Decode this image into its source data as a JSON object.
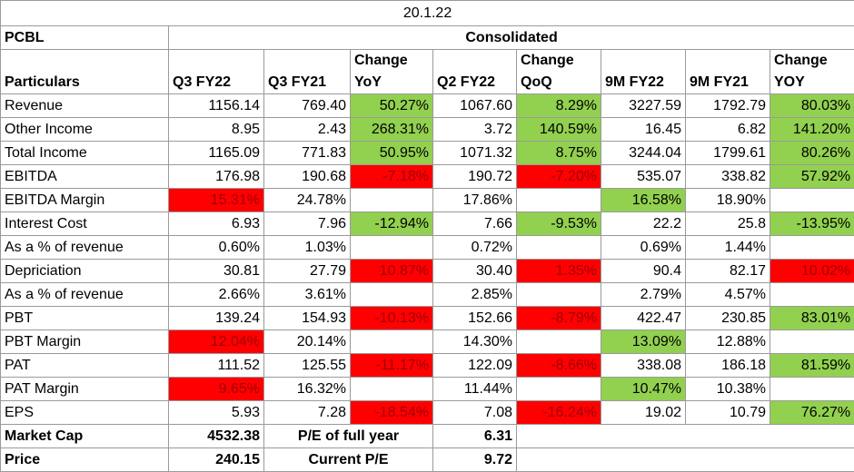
{
  "title": "20.1.22",
  "company": "PCBL",
  "group_label": "Consolidated",
  "headers": [
    "Particulars",
    "Q3 FY22",
    "Q3 FY21",
    "Change YoY",
    "Q2 FY22",
    "Change QoQ",
    "9M FY22",
    "9M FY21",
    "Change YOY"
  ],
  "colors": {
    "green": "#92D050",
    "red": "#FF0000"
  },
  "rows": [
    {
      "label": "Revenue",
      "cells": [
        {
          "v": "1156.14"
        },
        {
          "v": "769.40"
        },
        {
          "v": "50.27%",
          "f": "g"
        },
        {
          "v": "1067.60"
        },
        {
          "v": "8.29%",
          "f": "g"
        },
        {
          "v": "3227.59"
        },
        {
          "v": "1792.79"
        },
        {
          "v": "80.03%",
          "f": "g"
        }
      ]
    },
    {
      "label": "Other Income",
      "cells": [
        {
          "v": "8.95"
        },
        {
          "v": "2.43"
        },
        {
          "v": "268.31%",
          "f": "g"
        },
        {
          "v": "3.72"
        },
        {
          "v": "140.59%",
          "f": "g"
        },
        {
          "v": "16.45"
        },
        {
          "v": "6.82"
        },
        {
          "v": "141.20%",
          "f": "g"
        }
      ]
    },
    {
      "label": "Total Income",
      "cells": [
        {
          "v": "1165.09"
        },
        {
          "v": "771.83"
        },
        {
          "v": "50.95%",
          "f": "g"
        },
        {
          "v": "1071.32"
        },
        {
          "v": "8.75%",
          "f": "g"
        },
        {
          "v": "3244.04"
        },
        {
          "v": "1799.61"
        },
        {
          "v": "80.26%",
          "f": "g"
        }
      ]
    },
    {
      "label": "EBITDA",
      "cells": [
        {
          "v": "176.98"
        },
        {
          "v": "190.68"
        },
        {
          "v": "-7.18%",
          "f": "r"
        },
        {
          "v": "190.72"
        },
        {
          "v": "-7.20%",
          "f": "r"
        },
        {
          "v": "535.07"
        },
        {
          "v": "338.82"
        },
        {
          "v": "57.92%",
          "f": "g"
        }
      ]
    },
    {
      "label": "EBITDA Margin",
      "cells": [
        {
          "v": "15.31%",
          "f": "r"
        },
        {
          "v": "24.78%"
        },
        {
          "v": ""
        },
        {
          "v": "17.86%"
        },
        {
          "v": ""
        },
        {
          "v": "16.58%",
          "f": "g"
        },
        {
          "v": "18.90%"
        },
        {
          "v": ""
        }
      ]
    },
    {
      "label": "Interest Cost",
      "cells": [
        {
          "v": "6.93"
        },
        {
          "v": "7.96"
        },
        {
          "v": "-12.94%",
          "f": "g"
        },
        {
          "v": "7.66"
        },
        {
          "v": "-9.53%",
          "f": "g"
        },
        {
          "v": "22.2"
        },
        {
          "v": "25.8"
        },
        {
          "v": "-13.95%",
          "f": "g"
        }
      ]
    },
    {
      "label": "As a % of revenue",
      "cells": [
        {
          "v": "0.60%"
        },
        {
          "v": "1.03%"
        },
        {
          "v": ""
        },
        {
          "v": "0.72%"
        },
        {
          "v": ""
        },
        {
          "v": "0.69%"
        },
        {
          "v": "1.44%"
        },
        {
          "v": ""
        }
      ]
    },
    {
      "label": "Depriciation",
      "cells": [
        {
          "v": "30.81"
        },
        {
          "v": "27.79"
        },
        {
          "v": "10.87%",
          "f": "r"
        },
        {
          "v": "30.40"
        },
        {
          "v": "1.35%",
          "f": "r"
        },
        {
          "v": "90.4"
        },
        {
          "v": "82.17"
        },
        {
          "v": "10.02%",
          "f": "r"
        }
      ]
    },
    {
      "label": "As a % of revenue",
      "cells": [
        {
          "v": "2.66%"
        },
        {
          "v": "3.61%"
        },
        {
          "v": ""
        },
        {
          "v": "2.85%"
        },
        {
          "v": ""
        },
        {
          "v": "2.79%"
        },
        {
          "v": "4.57%"
        },
        {
          "v": ""
        }
      ]
    },
    {
      "label": "PBT",
      "cells": [
        {
          "v": "139.24"
        },
        {
          "v": "154.93"
        },
        {
          "v": "-10.13%",
          "f": "r"
        },
        {
          "v": "152.66"
        },
        {
          "v": "-8.79%",
          "f": "r"
        },
        {
          "v": "422.47"
        },
        {
          "v": "230.85"
        },
        {
          "v": "83.01%",
          "f": "g"
        }
      ]
    },
    {
      "label": "PBT Margin",
      "cells": [
        {
          "v": "12.04%",
          "f": "r"
        },
        {
          "v": "20.14%"
        },
        {
          "v": ""
        },
        {
          "v": "14.30%"
        },
        {
          "v": ""
        },
        {
          "v": "13.09%",
          "f": "g"
        },
        {
          "v": "12.88%"
        },
        {
          "v": ""
        }
      ]
    },
    {
      "label": "PAT",
      "cells": [
        {
          "v": "111.52"
        },
        {
          "v": "125.55"
        },
        {
          "v": "-11.17%",
          "f": "r"
        },
        {
          "v": "122.09"
        },
        {
          "v": "-8.66%",
          "f": "r"
        },
        {
          "v": "338.08"
        },
        {
          "v": "186.18"
        },
        {
          "v": "81.59%",
          "f": "g"
        }
      ]
    },
    {
      "label": "PAT Margin",
      "cells": [
        {
          "v": "9.65%",
          "f": "r"
        },
        {
          "v": "16.32%"
        },
        {
          "v": ""
        },
        {
          "v": "11.44%"
        },
        {
          "v": ""
        },
        {
          "v": "10.47%",
          "f": "g"
        },
        {
          "v": "10.38%"
        },
        {
          "v": ""
        }
      ]
    },
    {
      "label": "EPS",
      "cells": [
        {
          "v": "5.93"
        },
        {
          "v": "7.28"
        },
        {
          "v": "-18.54%",
          "f": "r"
        },
        {
          "v": "7.08"
        },
        {
          "v": "-16.24%",
          "f": "r"
        },
        {
          "v": "19.02"
        },
        {
          "v": "10.79"
        },
        {
          "v": "76.27%",
          "f": "g"
        }
      ]
    }
  ],
  "summary": [
    {
      "label": "Market Cap",
      "value": "4532.38",
      "pe_label": "P/E of full year",
      "pe_value": "6.31"
    },
    {
      "label": "Price",
      "value": "240.15",
      "pe_label": "Current P/E",
      "pe_value": "9.72"
    }
  ]
}
